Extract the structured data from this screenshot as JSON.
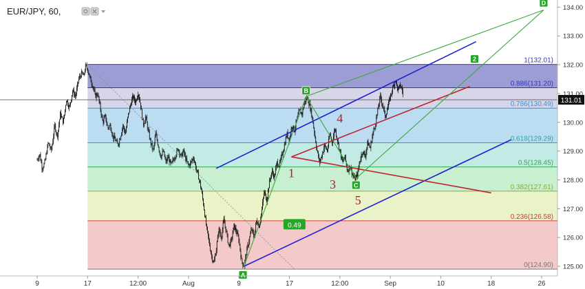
{
  "header": {
    "symbol": "EUR/JPY, 60,",
    "icon_names": [
      "settings-icon",
      "close-icon",
      "dropdown-arrow-icon"
    ]
  },
  "colors": {
    "candle": "#111111",
    "blue_channel": "#1f1fd6",
    "red_lines": "#c0212f",
    "green_lines": "#3ca83c",
    "wave_label": "#b01e2a",
    "price_tag_bg": "#111111",
    "marker_bg": "#26a626"
  },
  "chart_data": {
    "type": "candlestick",
    "y_axis": {
      "range": [
        124.8,
        134.4
      ],
      "tick_labels": [
        "125.00",
        "126.00",
        "127.00",
        "128.00",
        "129.00",
        "130.00",
        "131.00",
        "132.00",
        "133.00",
        "134.00"
      ],
      "tick_values": [
        125,
        126,
        127,
        128,
        129,
        130,
        131,
        132,
        133,
        134
      ]
    },
    "x_axis": {
      "tick_labels": [
        "9",
        "17",
        "12:00",
        "Aug",
        "9",
        "17",
        "12:00",
        "Sep",
        "10",
        "18",
        "26"
      ],
      "tick_index": [
        0,
        1,
        2,
        3,
        4,
        5,
        6,
        7,
        8,
        9,
        10
      ]
    },
    "current_price": "131.01",
    "price_path": [
      [
        0.0,
        128.7
      ],
      [
        0.05,
        128.9
      ],
      [
        0.1,
        128.4
      ],
      [
        0.15,
        128.6
      ],
      [
        0.22,
        129.3
      ],
      [
        0.28,
        129.0
      ],
      [
        0.35,
        129.9
      ],
      [
        0.4,
        129.5
      ],
      [
        0.46,
        130.3
      ],
      [
        0.52,
        130.0
      ],
      [
        0.58,
        130.8
      ],
      [
        0.64,
        130.5
      ],
      [
        0.7,
        131.1
      ],
      [
        0.76,
        130.9
      ],
      [
        0.82,
        131.5
      ],
      [
        0.88,
        131.7
      ],
      [
        0.92,
        131.6
      ],
      [
        0.96,
        131.95
      ],
      [
        1.0,
        131.85
      ],
      [
        1.05,
        131.5
      ],
      [
        1.1,
        131.3
      ],
      [
        1.15,
        130.9
      ],
      [
        1.2,
        131.0
      ],
      [
        1.25,
        130.5
      ],
      [
        1.3,
        130.0
      ],
      [
        1.35,
        130.2
      ],
      [
        1.4,
        129.8
      ],
      [
        1.45,
        129.9
      ],
      [
        1.5,
        129.5
      ],
      [
        1.55,
        129.4
      ],
      [
        1.6,
        129.2
      ],
      [
        1.65,
        129.5
      ],
      [
        1.7,
        129.9
      ],
      [
        1.75,
        129.6
      ],
      [
        1.8,
        130.2
      ],
      [
        1.85,
        130.6
      ],
      [
        1.9,
        130.9
      ],
      [
        1.95,
        130.7
      ],
      [
        2.0,
        131.05
      ],
      [
        2.05,
        130.6
      ],
      [
        2.1,
        129.9
      ],
      [
        2.15,
        130.2
      ],
      [
        2.2,
        129.7
      ],
      [
        2.25,
        129.3
      ],
      [
        2.3,
        129.0
      ],
      [
        2.35,
        129.6
      ],
      [
        2.4,
        129.2
      ],
      [
        2.45,
        128.8
      ],
      [
        2.5,
        129.0
      ],
      [
        2.55,
        128.6
      ],
      [
        2.6,
        128.8
      ],
      [
        2.65,
        128.5
      ],
      [
        2.7,
        128.7
      ],
      [
        2.75,
        128.9
      ],
      [
        2.8,
        129.1
      ],
      [
        2.85,
        128.8
      ],
      [
        2.9,
        129.0
      ],
      [
        2.95,
        128.7
      ],
      [
        3.0,
        128.5
      ],
      [
        3.05,
        128.6
      ],
      [
        3.1,
        128.8
      ],
      [
        3.15,
        128.4
      ],
      [
        3.2,
        128.1
      ],
      [
        3.25,
        127.7
      ],
      [
        3.3,
        127.1
      ],
      [
        3.35,
        126.4
      ],
      [
        3.4,
        125.9
      ],
      [
        3.45,
        125.4
      ],
      [
        3.5,
        125.1
      ],
      [
        3.55,
        125.6
      ],
      [
        3.6,
        126.3
      ],
      [
        3.65,
        126.0
      ],
      [
        3.7,
        126.6
      ],
      [
        3.75,
        126.2
      ],
      [
        3.8,
        125.7
      ],
      [
        3.85,
        125.9
      ],
      [
        3.9,
        126.4
      ],
      [
        3.95,
        126.2
      ],
      [
        4.0,
        125.9
      ],
      [
        4.05,
        125.2
      ],
      [
        4.1,
        125.0
      ],
      [
        4.15,
        125.5
      ],
      [
        4.2,
        125.9
      ],
      [
        4.25,
        126.3
      ],
      [
        4.3,
        126.0
      ],
      [
        4.35,
        126.6
      ],
      [
        4.4,
        126.4
      ],
      [
        4.45,
        126.9
      ],
      [
        4.5,
        127.6
      ],
      [
        4.55,
        127.3
      ],
      [
        4.6,
        127.9
      ],
      [
        4.65,
        128.3
      ],
      [
        4.7,
        128.1
      ],
      [
        4.75,
        128.6
      ],
      [
        4.8,
        128.5
      ],
      [
        4.85,
        128.85
      ],
      [
        4.9,
        129.2
      ],
      [
        4.95,
        129.6
      ],
      [
        5.0,
        129.4
      ],
      [
        5.05,
        129.9
      ],
      [
        5.1,
        129.7
      ],
      [
        5.15,
        130.1
      ],
      [
        5.2,
        130.4
      ],
      [
        5.25,
        130.3
      ],
      [
        5.3,
        130.7
      ],
      [
        5.35,
        130.85
      ],
      [
        5.4,
        130.6
      ],
      [
        5.45,
        130.2
      ],
      [
        5.5,
        129.6
      ],
      [
        5.55,
        129.0
      ],
      [
        5.6,
        128.6
      ],
      [
        5.65,
        128.9
      ],
      [
        5.7,
        129.2
      ],
      [
        5.75,
        129.0
      ],
      [
        5.8,
        129.6
      ],
      [
        5.85,
        129.3
      ],
      [
        5.9,
        129.8
      ],
      [
        5.95,
        129.4
      ],
      [
        6.0,
        129.0
      ],
      [
        6.05,
        128.6
      ],
      [
        6.1,
        128.8
      ],
      [
        6.15,
        128.3
      ],
      [
        6.2,
        128.5
      ],
      [
        6.25,
        128.2
      ],
      [
        6.3,
        128.0
      ],
      [
        6.35,
        128.2
      ],
      [
        6.4,
        128.7
      ],
      [
        6.45,
        129.0
      ],
      [
        6.5,
        128.8
      ],
      [
        6.55,
        129.3
      ],
      [
        6.6,
        129.1
      ],
      [
        6.65,
        129.6
      ],
      [
        6.7,
        129.9
      ],
      [
        6.75,
        130.4
      ],
      [
        6.8,
        130.9
      ],
      [
        6.85,
        130.6
      ],
      [
        6.9,
        130.2
      ],
      [
        6.95,
        130.5
      ],
      [
        7.0,
        130.9
      ],
      [
        7.05,
        131.2
      ],
      [
        7.1,
        131.5
      ],
      [
        7.15,
        131.1
      ],
      [
        7.2,
        131.3
      ],
      [
        7.25,
        131.0
      ]
    ],
    "fib_levels": [
      {
        "label": "1(132.01)",
        "value": 132.01,
        "color": "#3b3ba8",
        "fill": "#9d9dd6"
      },
      {
        "label": "0.886(131.20)",
        "value": 131.2,
        "color": "#3232c0",
        "fill": "#d6d6e8"
      },
      {
        "label": "0.786(130.49)",
        "value": 130.49,
        "color": "#3b8fd8",
        "fill": "#bcdcf2"
      },
      {
        "label": "0.618(129.29)",
        "value": 129.29,
        "color": "#2fa4a4",
        "fill": "#c3ebe6"
      },
      {
        "label": "0.5(128.45)",
        "value": 128.45,
        "color": "#37a64b",
        "fill": "#c8efcf"
      },
      {
        "label": "0.382(127.61)",
        "value": 127.61,
        "color": "#8aa83c",
        "fill": "#e9f3c7"
      },
      {
        "label": "0.236(126.58)",
        "value": 126.58,
        "color": "#d03a3a",
        "fill": "#f3c9c9"
      },
      {
        "label": "0(124.90)",
        "value": 124.9,
        "color": "#777777",
        "fill": null
      }
    ],
    "fib_x_range": [
      1.0,
      10.6
    ],
    "dashed_line": {
      "from": [
        1.0,
        132.0
      ],
      "to": [
        5.1,
        124.9
      ]
    },
    "markers": [
      {
        "label": "A",
        "x": 4.08,
        "y": 124.7,
        "type": "box-below"
      },
      {
        "label": "B",
        "x": 5.33,
        "y": 131.1,
        "type": "box-above"
      },
      {
        "label": "C",
        "x": 6.32,
        "y": 127.82,
        "type": "box-below"
      },
      {
        "label": "D",
        "x": 10.04,
        "y": 134.15,
        "type": "box-above"
      },
      {
        "label": "2",
        "x": 8.67,
        "y": 132.2,
        "type": "box-above"
      },
      {
        "label": "0.49",
        "x": 5.1,
        "y": 126.45,
        "type": "tag"
      }
    ],
    "wave_labels": [
      {
        "label": "1",
        "x": 5.04,
        "y": 128.1
      },
      {
        "label": "3",
        "x": 5.86,
        "y": 127.7
      },
      {
        "label": "4",
        "x": 6.0,
        "y": 130.0
      },
      {
        "label": "5",
        "x": 6.36,
        "y": 127.15
      }
    ],
    "trend_lines": [
      {
        "group": "blue",
        "from": [
          3.55,
          128.4
        ],
        "to": [
          8.7,
          132.8
        ]
      },
      {
        "group": "blue",
        "from": [
          4.1,
          125.0
        ],
        "to": [
          9.4,
          129.4
        ]
      },
      {
        "group": "red",
        "from": [
          5.04,
          128.8
        ],
        "to": [
          8.58,
          131.25
        ]
      },
      {
        "group": "red",
        "from": [
          5.04,
          128.8
        ],
        "to": [
          9.0,
          127.55
        ]
      },
      {
        "group": "green",
        "from": [
          4.1,
          125.0
        ],
        "to": [
          5.33,
          130.9
        ]
      },
      {
        "group": "green",
        "from": [
          5.33,
          130.9
        ],
        "to": [
          6.32,
          128.05
        ]
      },
      {
        "group": "green",
        "from": [
          6.32,
          128.05
        ],
        "to": [
          10.04,
          133.9
        ]
      },
      {
        "group": "green",
        "from": [
          5.33,
          130.9
        ],
        "to": [
          10.04,
          133.9
        ]
      }
    ]
  }
}
